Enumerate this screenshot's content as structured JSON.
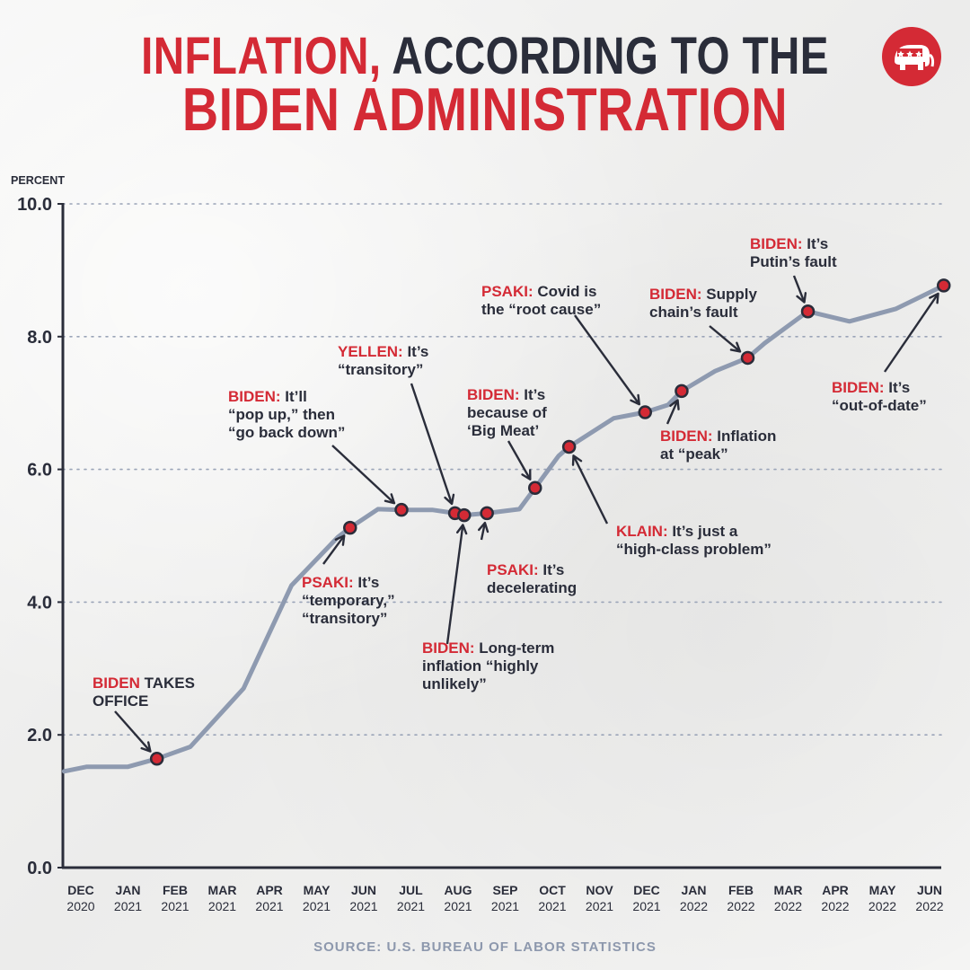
{
  "header": {
    "title_part1": "INFLATION,",
    "title_part2": " ACCORDING TO THE",
    "title_line2": "BIDEN ADMINISTRATION"
  },
  "logo": {
    "icon": "gop-elephant-icon"
  },
  "source": "SOURCE: U.S. BUREAU OF LABOR STATISTICS",
  "colors": {
    "accent_red": "#d42a35",
    "text_dark": "#2a2d3a",
    "line_gray": "#8e9ab0",
    "source_gray": "#8d98ad"
  },
  "chart_data": {
    "type": "line",
    "ylabel": "PERCENT",
    "ylim": [
      0,
      10
    ],
    "yticks": [
      "0.0",
      "2.0",
      "4.0",
      "6.0",
      "8.0",
      "10.0"
    ],
    "grid": "dotted horizontal",
    "x_ticks": [
      {
        "month": "DEC",
        "year": "2020"
      },
      {
        "month": "JAN",
        "year": "2021"
      },
      {
        "month": "FEB",
        "year": "2021"
      },
      {
        "month": "MAR",
        "year": "2021"
      },
      {
        "month": "APR",
        "year": "2021"
      },
      {
        "month": "MAY",
        "year": "2021"
      },
      {
        "month": "JUN",
        "year": "2021"
      },
      {
        "month": "JUL",
        "year": "2021"
      },
      {
        "month": "AUG",
        "year": "2021"
      },
      {
        "month": "SEP",
        "year": "2021"
      },
      {
        "month": "OCT",
        "year": "2021"
      },
      {
        "month": "NOV",
        "year": "2021"
      },
      {
        "month": "DEC",
        "year": "2021"
      },
      {
        "month": "JAN",
        "year": "2022"
      },
      {
        "month": "FEB",
        "year": "2022"
      },
      {
        "month": "MAR",
        "year": "2022"
      },
      {
        "month": "APR",
        "year": "2022"
      },
      {
        "month": "MAY",
        "year": "2022"
      },
      {
        "month": "JUN",
        "year": "2022"
      }
    ],
    "series": [
      {
        "points": [
          {
            "x": "2020-11-20",
            "y": 1.45
          },
          {
            "x": "2020-12-05",
            "y": 1.52
          },
          {
            "x": "2021-01-01",
            "y": 1.52
          },
          {
            "x": "2021-01-20",
            "y": 1.64
          },
          {
            "x": "2021-02-10",
            "y": 1.82
          },
          {
            "x": "2021-03-15",
            "y": 2.7
          },
          {
            "x": "2021-04-15",
            "y": 4.25
          },
          {
            "x": "2021-05-15",
            "y": 4.98
          },
          {
            "x": "2021-05-23",
            "y": 5.12
          },
          {
            "x": "2021-06-10",
            "y": 5.4
          },
          {
            "x": "2021-06-25",
            "y": 5.39
          },
          {
            "x": "2021-07-15",
            "y": 5.39
          },
          {
            "x": "2021-07-30",
            "y": 5.34
          },
          {
            "x": "2021-08-05",
            "y": 5.31
          },
          {
            "x": "2021-08-20",
            "y": 5.34
          },
          {
            "x": "2021-09-10",
            "y": 5.4
          },
          {
            "x": "2021-09-20",
            "y": 5.72
          },
          {
            "x": "2021-10-05",
            "y": 6.2
          },
          {
            "x": "2021-10-12",
            "y": 6.34
          },
          {
            "x": "2021-11-10",
            "y": 6.77
          },
          {
            "x": "2021-11-30",
            "y": 6.86
          },
          {
            "x": "2021-12-15",
            "y": 6.97
          },
          {
            "x": "2021-12-24",
            "y": 7.18
          },
          {
            "x": "2022-01-15",
            "y": 7.48
          },
          {
            "x": "2022-02-05",
            "y": 7.68
          },
          {
            "x": "2022-02-15",
            "y": 7.9
          },
          {
            "x": "2022-03-14",
            "y": 8.38
          },
          {
            "x": "2022-04-10",
            "y": 8.23
          },
          {
            "x": "2022-05-10",
            "y": 8.42
          },
          {
            "x": "2022-06-10",
            "y": 8.77
          }
        ]
      }
    ],
    "annotations": [
      {
        "speaker": "BIDEN",
        "lines": [
          " TAKES",
          "OFFICE"
        ],
        "x": "2021-01-20",
        "y": 1.64
      },
      {
        "speaker": "PSAKI:",
        "lines": [
          " It’s",
          "“temporary,”",
          "“transitory”"
        ],
        "x": "2021-05-23",
        "y": 5.12
      },
      {
        "speaker": "BIDEN:",
        "lines": [
          " It’ll",
          "“pop up,” then",
          "“go back down”"
        ],
        "x": "2021-06-25",
        "y": 5.39
      },
      {
        "speaker": "YELLEN:",
        "lines": [
          " It’s",
          "“transitory”"
        ],
        "x": "2021-07-30",
        "y": 5.34
      },
      {
        "speaker": "BIDEN:",
        "lines": [
          " Long-term",
          "inflation “highly",
          "unlikely”"
        ],
        "x": "2021-08-05",
        "y": 5.31
      },
      {
        "speaker": "PSAKI:",
        "lines": [
          " It’s",
          "decelerating"
        ],
        "x": "2021-08-20",
        "y": 5.34
      },
      {
        "speaker": "BIDEN:",
        "lines": [
          " It’s",
          "because of",
          "‘Big Meat’"
        ],
        "x": "2021-09-20",
        "y": 5.72
      },
      {
        "speaker": "KLAIN:",
        "lines": [
          " It’s just a",
          "“high-class problem”"
        ],
        "x": "2021-10-12",
        "y": 6.34
      },
      {
        "speaker": "PSAKI:",
        "lines": [
          " Covid is",
          "the “root cause”"
        ],
        "x": "2021-11-30",
        "y": 6.86
      },
      {
        "speaker": "BIDEN:",
        "lines": [
          " Inflation",
          "at “peak”"
        ],
        "x": "2021-12-24",
        "y": 7.18
      },
      {
        "speaker": "BIDEN:",
        "lines": [
          " Supply",
          "chain’s fault"
        ],
        "x": "2022-02-05",
        "y": 7.68
      },
      {
        "speaker": "BIDEN:",
        "lines": [
          " It’s",
          "Putin’s fault"
        ],
        "x": "2022-03-14",
        "y": 8.38
      },
      {
        "speaker": "BIDEN:",
        "lines": [
          " It’s",
          "“out-of-date”"
        ],
        "x": "2022-06-10",
        "y": 8.77
      }
    ]
  }
}
